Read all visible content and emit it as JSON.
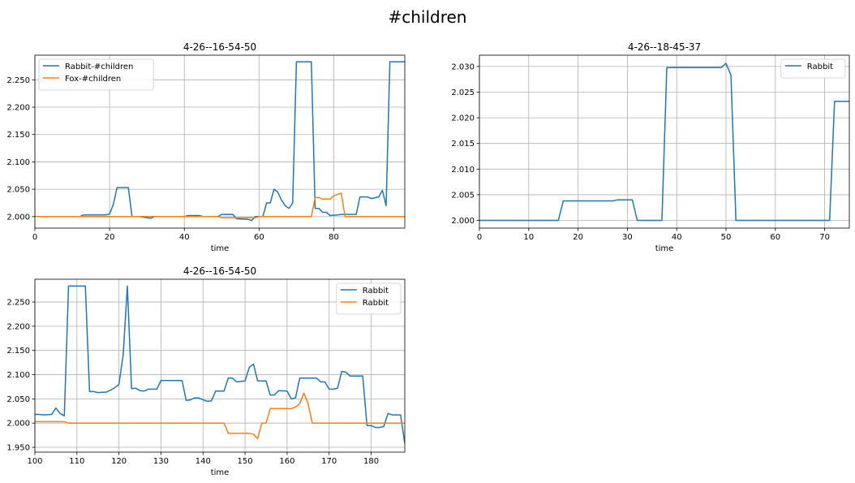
{
  "figure": {
    "title": "#children"
  },
  "chart_data": [
    {
      "type": "line",
      "title": "4-26--16-54-50",
      "xlabel": "time",
      "ylabel": "",
      "xlim": [
        0,
        99
      ],
      "ylim": [
        1.979,
        2.295
      ],
      "xticks": [
        0,
        20,
        40,
        60,
        80
      ],
      "yticks": [
        2.0,
        2.05,
        2.1,
        2.15,
        2.2,
        2.25
      ],
      "ytick_decimals": 3,
      "grid": true,
      "legend": "top-left",
      "series": [
        {
          "name": "Rabbit-#children",
          "color": "#1f77b4",
          "points": [
            [
              0,
              2.0
            ],
            [
              12,
              2.0
            ],
            [
              13,
              2.003
            ],
            [
              19,
              2.003
            ],
            [
              20,
              2.005
            ],
            [
              21,
              2.022
            ],
            [
              22,
              2.053
            ],
            [
              25,
              2.053
            ],
            [
              26,
              2.0
            ],
            [
              27,
              2.0
            ],
            [
              28,
              2.0
            ],
            [
              29,
              1.999
            ],
            [
              31,
              1.997
            ],
            [
              32,
              2.0
            ],
            [
              40,
              2.0
            ],
            [
              41,
              2.002
            ],
            [
              44,
              2.002
            ],
            [
              45,
              2.0
            ],
            [
              49,
              2.0
            ],
            [
              50,
              2.004
            ],
            [
              53,
              2.004
            ],
            [
              54,
              1.996
            ],
            [
              57,
              1.995
            ],
            [
              58,
              1.993
            ],
            [
              59,
              2.0
            ],
            [
              61,
              2.0
            ],
            [
              62,
              2.025
            ],
            [
              63,
              2.025
            ],
            [
              64,
              2.05
            ],
            [
              65,
              2.045
            ],
            [
              66,
              2.03
            ],
            [
              67,
              2.02
            ],
            [
              68,
              2.015
            ],
            [
              69,
              2.025
            ],
            [
              70,
              2.283
            ],
            [
              74,
              2.283
            ],
            [
              75,
              2.015
            ],
            [
              76,
              2.015
            ],
            [
              77,
              2.008
            ],
            [
              78,
              2.008
            ],
            [
              79,
              2.002
            ],
            [
              81,
              2.003
            ],
            [
              82,
              2.004
            ],
            [
              86,
              2.004
            ],
            [
              87,
              2.036
            ],
            [
              89,
              2.036
            ],
            [
              90,
              2.033
            ],
            [
              92,
              2.036
            ],
            [
              93,
              2.048
            ],
            [
              94,
              2.02
            ],
            [
              95,
              2.283
            ],
            [
              99,
              2.283
            ]
          ]
        },
        {
          "name": "Fox-#children",
          "color": "#ff7f0e",
          "points": [
            [
              0,
              2.0
            ],
            [
              49,
              2.0
            ],
            [
              50,
              1.998
            ],
            [
              59,
              1.998
            ],
            [
              60,
              2.0
            ],
            [
              74,
              2.0
            ],
            [
              75,
              2.035
            ],
            [
              76,
              2.035
            ],
            [
              77,
              2.032
            ],
            [
              79,
              2.032
            ],
            [
              80,
              2.038
            ],
            [
              82,
              2.043
            ],
            [
              83,
              2.0
            ],
            [
              99,
              2.0
            ]
          ]
        }
      ]
    },
    {
      "type": "line",
      "title": "4-26--18-45-37",
      "xlabel": "time",
      "ylabel": "",
      "xlim": [
        0,
        75
      ],
      "ylim": [
        1.9985,
        2.0322
      ],
      "xticks": [
        0,
        10,
        20,
        30,
        40,
        50,
        60,
        70
      ],
      "yticks": [
        2.0,
        2.005,
        2.01,
        2.015,
        2.02,
        2.025,
        2.03
      ],
      "ytick_decimals": 3,
      "grid": true,
      "legend": "top-right",
      "series": [
        {
          "name": "Rabbit",
          "color": "#1f77b4",
          "points": [
            [
              0,
              2.0
            ],
            [
              16,
              2.0
            ],
            [
              17,
              2.0038
            ],
            [
              27,
              2.0038
            ],
            [
              28,
              2.004
            ],
            [
              31,
              2.004
            ],
            [
              32,
              2.0
            ],
            [
              37,
              2.0
            ],
            [
              38,
              2.0298
            ],
            [
              49,
              2.0298
            ],
            [
              50,
              2.0306
            ],
            [
              51,
              2.0283
            ],
            [
              52,
              2.0
            ],
            [
              71,
              2.0
            ],
            [
              72,
              2.0232
            ],
            [
              75,
              2.0232
            ]
          ]
        }
      ]
    },
    {
      "type": "line",
      "title": "4-26--16-54-50",
      "xlabel": "time",
      "ylabel": "",
      "xlim": [
        100,
        188
      ],
      "ylim": [
        1.94,
        2.297
      ],
      "xticks": [
        100,
        110,
        120,
        130,
        140,
        150,
        160,
        170,
        180
      ],
      "yticks": [
        1.95,
        2.0,
        2.05,
        2.1,
        2.15,
        2.2,
        2.25
      ],
      "ytick_decimals": 3,
      "grid": true,
      "legend": "top-right",
      "series": [
        {
          "name": "Rabbit",
          "color": "#1f77b4",
          "points": [
            [
              100,
              2.018
            ],
            [
              101,
              2.018
            ],
            [
              102,
              2.017
            ],
            [
              104,
              2.018
            ],
            [
              105,
              2.031
            ],
            [
              106,
              2.02
            ],
            [
              107,
              2.015
            ],
            [
              108,
              2.283
            ],
            [
              112,
              2.283
            ],
            [
              113,
              2.065
            ],
            [
              114,
              2.065
            ],
            [
              115,
              2.063
            ],
            [
              117,
              2.064
            ],
            [
              118,
              2.068
            ],
            [
              119,
              2.073
            ],
            [
              120,
              2.08
            ],
            [
              121,
              2.14
            ],
            [
              122,
              2.283
            ],
            [
              123,
              2.071
            ],
            [
              124,
              2.072
            ],
            [
              125,
              2.067
            ],
            [
              126,
              2.066
            ],
            [
              127,
              2.07
            ],
            [
              129,
              2.07
            ],
            [
              130,
              2.088
            ],
            [
              135,
              2.088
            ],
            [
              136,
              2.047
            ],
            [
              137,
              2.048
            ],
            [
              138,
              2.052
            ],
            [
              139,
              2.052
            ],
            [
              140,
              2.048
            ],
            [
              141,
              2.045
            ],
            [
              142,
              2.046
            ],
            [
              143,
              2.066
            ],
            [
              145,
              2.066
            ],
            [
              146,
              2.093
            ],
            [
              147,
              2.093
            ],
            [
              148,
              2.085
            ],
            [
              150,
              2.087
            ],
            [
              151,
              2.115
            ],
            [
              152,
              2.122
            ],
            [
              153,
              2.087
            ],
            [
              155,
              2.087
            ],
            [
              156,
              2.058
            ],
            [
              157,
              2.058
            ],
            [
              158,
              2.067
            ],
            [
              160,
              2.066
            ],
            [
              161,
              2.05
            ],
            [
              162,
              2.052
            ],
            [
              163,
              2.093
            ],
            [
              167,
              2.093
            ],
            [
              168,
              2.085
            ],
            [
              169,
              2.085
            ],
            [
              170,
              2.07
            ],
            [
              171,
              2.07
            ],
            [
              172,
              2.072
            ],
            [
              173,
              2.107
            ],
            [
              174,
              2.105
            ],
            [
              175,
              2.097
            ],
            [
              178,
              2.097
            ],
            [
              179,
              1.995
            ],
            [
              180,
              1.995
            ],
            [
              181,
              1.991
            ],
            [
              182,
              1.991
            ],
            [
              183,
              1.993
            ],
            [
              184,
              2.02
            ],
            [
              185,
              2.017
            ],
            [
              187,
              2.017
            ],
            [
              188,
              1.958
            ]
          ]
        },
        {
          "name": "Rabbit",
          "color": "#ff7f0e",
          "points": [
            [
              100,
              2.003
            ],
            [
              107,
              2.003
            ],
            [
              108,
              2.0
            ],
            [
              145,
              2.0
            ],
            [
              146,
              1.979
            ],
            [
              151,
              1.979
            ],
            [
              152,
              1.977
            ],
            [
              153,
              1.968
            ],
            [
              154,
              2.0
            ],
            [
              155,
              2.0
            ],
            [
              156,
              2.03
            ],
            [
              161,
              2.03
            ],
            [
              162,
              2.033
            ],
            [
              163,
              2.04
            ],
            [
              164,
              2.062
            ],
            [
              165,
              2.04
            ],
            [
              166,
              2.0
            ],
            [
              188,
              2.0
            ]
          ]
        }
      ]
    }
  ]
}
